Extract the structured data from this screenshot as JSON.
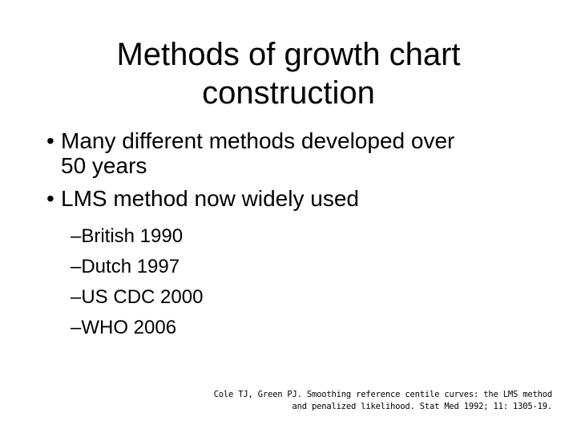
{
  "slide": {
    "title_lines": [
      "Methods of growth chart",
      "construction"
    ],
    "bullets": [
      {
        "marker": "•",
        "lines": [
          "Many different methods developed over",
          "50 years"
        ]
      },
      {
        "marker": "•",
        "lines": [
          "LMS method now widely used"
        ]
      }
    ],
    "sub_bullets": [
      "–British 1990",
      "–Dutch 1997",
      "–US CDC 2000",
      "–WHO 2006"
    ],
    "citation_lines": [
      "Cole TJ, Green PJ. Smoothing reference centile curves: the LMS method",
      "and penalized likelihood. Stat Med 1992; 11: 1305-19."
    ]
  }
}
